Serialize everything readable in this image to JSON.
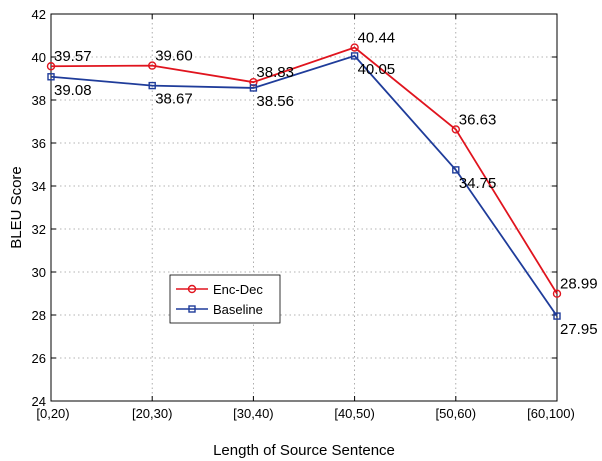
{
  "chart_data": {
    "type": "line",
    "title": "",
    "xlabel": "Length of Source Sentence",
    "ylabel": "BLEU Score",
    "categories": [
      "[0,20)",
      "[20,30)",
      "[30,40)",
      "[40,50)",
      "[50,60)",
      "[60,100)"
    ],
    "yticks": [
      "24",
      "26",
      "28",
      "30",
      "32",
      "34",
      "36",
      "38",
      "40",
      "42"
    ],
    "ylim": [
      24,
      42
    ],
    "grid": true,
    "legend_position": "center-left",
    "series": [
      {
        "name": "Enc-Dec",
        "color": "#e0141e",
        "marker": "circle",
        "values": [
          39.57,
          39.6,
          38.83,
          40.44,
          36.63,
          28.99
        ],
        "labels": [
          "39.57",
          "39.60",
          "38.83",
          "40.44",
          "36.63",
          "28.99"
        ]
      },
      {
        "name": "Baseline",
        "color": "#1f3c9a",
        "marker": "square",
        "values": [
          39.08,
          38.67,
          38.56,
          40.05,
          34.75,
          27.95
        ],
        "labels": [
          "39.08",
          "38.67",
          "38.56",
          "40.05",
          "34.75",
          "27.95"
        ]
      }
    ]
  }
}
